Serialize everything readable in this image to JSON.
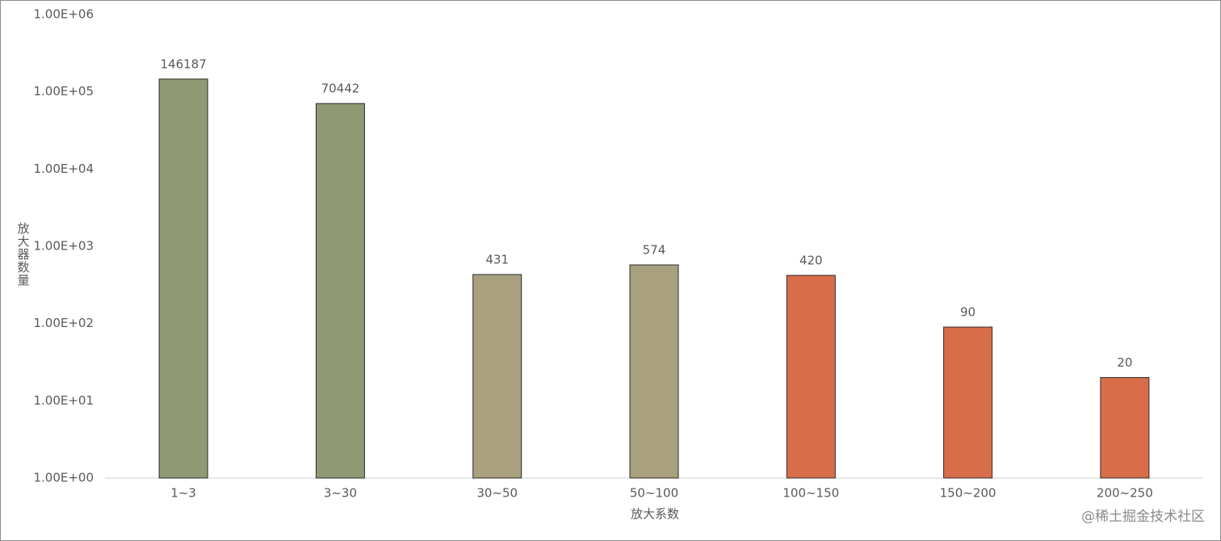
{
  "chart_data": {
    "type": "bar",
    "categories": [
      "1~3",
      "3~30",
      "30~50",
      "50~100",
      "100~150",
      "150~200",
      "200~250"
    ],
    "values": [
      146187,
      70442,
      431,
      574,
      420,
      90,
      20
    ],
    "colors": [
      "#8f9a74",
      "#8f9a74",
      "#a8a07f",
      "#a8a07f",
      "#d86d4a",
      "#d86d4a",
      "#d86d4a"
    ],
    "x_label": "放大系数",
    "y_label": "放大器数量",
    "log_scale": true,
    "grid": false,
    "ylim": [
      1,
      1000000
    ],
    "yticks": [
      {
        "value": 1,
        "label": "1.00E+00"
      },
      {
        "value": 10,
        "label": "1.00E+01"
      },
      {
        "value": 100,
        "label": "1.00E+02"
      },
      {
        "value": 1000,
        "label": "1.00E+03"
      },
      {
        "value": 10000,
        "label": "1.00E+04"
      },
      {
        "value": 100000,
        "label": "1.00E+05"
      },
      {
        "value": 1000000,
        "label": "1.00E+06"
      }
    ],
    "watermark": "@稀土掘金技术社区"
  }
}
